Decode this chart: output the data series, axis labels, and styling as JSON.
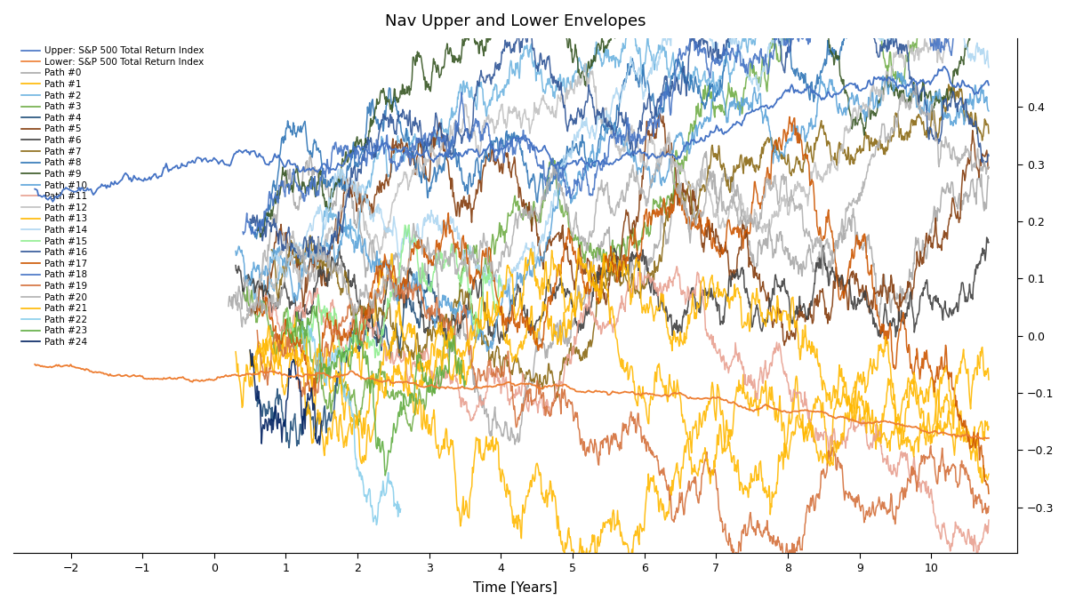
{
  "title": "Nav Upper and Lower Envelopes",
  "xlabel": "Time [Years]",
  "xlim": [
    -2.8,
    11.2
  ],
  "ylim": [
    -0.38,
    0.52
  ],
  "yticks": [
    -0.3,
    -0.2,
    -0.1,
    0.0,
    0.1,
    0.2,
    0.3,
    0.4
  ],
  "xticks": [
    -2,
    -1,
    0,
    1,
    2,
    3,
    4,
    5,
    6,
    7,
    8,
    9,
    10
  ],
  "upper_color": "#4472C4",
  "lower_color": "#ED7D31",
  "path_colors": [
    "#A9A9A9",
    "#FFB800",
    "#6EB4E0",
    "#70AD47",
    "#1F4E79",
    "#843C0C",
    "#404040",
    "#8B6914",
    "#2E75B6",
    "#375623",
    "#5BA3D9",
    "#E8A090",
    "#C0C0C0",
    "#FFB800",
    "#AED6F1",
    "#90EE90",
    "#2F5597",
    "#CC5500",
    "#4472C4",
    "#D4703B",
    "#B0B0B0",
    "#FFB800",
    "#87CEEB",
    "#5FAD41",
    "#002060"
  ],
  "legend_colors": [
    "#4472C4",
    "#ED7D31",
    "#A9A9A9",
    "#FFB800",
    "#6EB4E0",
    "#70AD47",
    "#1F4E79",
    "#843C0C",
    "#404040",
    "#8B6914",
    "#2E75B6",
    "#375623",
    "#5BA3D9",
    "#E8A090",
    "#C0C0C0",
    "#FFB800",
    "#AED6F1",
    "#90EE90",
    "#2F5597",
    "#CC5500",
    "#4472C4",
    "#D4703B",
    "#B0B0B0",
    "#FFB800",
    "#87CEEB",
    "#5FAD41",
    "#002060"
  ],
  "legend_labels": [
    "Upper: S&P 500 Total Return Index",
    "Lower: S&P 500 Total Return Index",
    "Path #0",
    "Path #1",
    "Path #2",
    "Path #3",
    "Path #4",
    "Path #5",
    "Path #6",
    "Path #7",
    "Path #8",
    "Path #9",
    "Path #10",
    "Path #11",
    "Path #12",
    "Path #13",
    "Path #14",
    "Path #15",
    "Path #16",
    "Path #17",
    "Path #18",
    "Path #19",
    "Path #20",
    "Path #21",
    "Path #22",
    "Path #23",
    "Path #24"
  ],
  "seed": 999
}
